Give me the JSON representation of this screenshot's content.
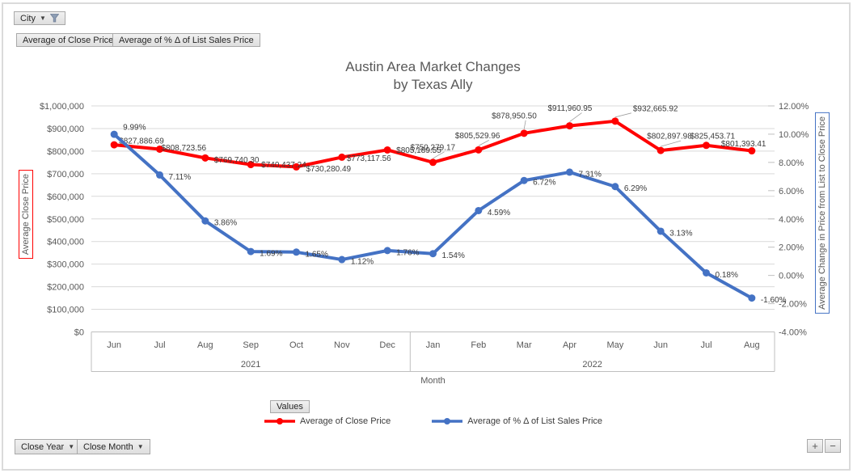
{
  "filter_button": {
    "label": "City"
  },
  "series_field_buttons": [
    {
      "label": "Average of Close Price"
    },
    {
      "label": "Average of % Δ of List Sales Price"
    }
  ],
  "title": {
    "line1": "Austin Area Market Changes",
    "line2": "by Texas Ally"
  },
  "left_axis": {
    "title": "Average Close Price",
    "color": "#FF0000",
    "ticks": [
      "$1,000,000",
      "$900,000",
      "$800,000",
      "$700,000",
      "$600,000",
      "$500,000",
      "$400,000",
      "$300,000",
      "$200,000",
      "$100,000",
      "$0"
    ]
  },
  "right_axis": {
    "title": "Average Change in Price from List to Close Price",
    "color": "#4472C4",
    "ticks": [
      "12.00%",
      "10.00%",
      "8.00%",
      "6.00%",
      "4.00%",
      "2.00%",
      "0.00%",
      "-2.00%",
      "-4.00%"
    ]
  },
  "x_axis": {
    "title": "Month",
    "groups": [
      {
        "year": "2021",
        "months": [
          "Jun",
          "Jul",
          "Aug",
          "Sep",
          "Oct",
          "Nov",
          "Dec"
        ]
      },
      {
        "year": "2022",
        "months": [
          "Jan",
          "Feb",
          "Mar",
          "Apr",
          "May",
          "Jun",
          "Jul",
          "Aug"
        ]
      }
    ]
  },
  "values_button": {
    "label": "Values"
  },
  "legend": [
    {
      "label": "Average of Close Price",
      "color": "#FF0000"
    },
    {
      "label": "Average of % Δ of List Sales Price",
      "color": "#4472C4"
    }
  ],
  "axis_field_buttons": [
    {
      "label": "Close Year"
    },
    {
      "label": "Close Month"
    }
  ],
  "zoom_buttons": {
    "plus": "+",
    "minus": "−"
  },
  "chart_data": {
    "type": "line",
    "title": "Austin Area Market Changes by Texas Ally",
    "x": [
      "Jun 2021",
      "Jul 2021",
      "Aug 2021",
      "Sep 2021",
      "Oct 2021",
      "Nov 2021",
      "Dec 2021",
      "Jan 2022",
      "Feb 2022",
      "Mar 2022",
      "Apr 2022",
      "May 2022",
      "Jun 2022",
      "Jul 2022",
      "Aug 2022"
    ],
    "xlabel": "Month",
    "left_ylabel": "Average Close Price",
    "right_ylabel": "Average Change in Price from List to Close Price",
    "left_ylim": [
      0,
      1000000
    ],
    "right_ylim": [
      -4,
      12
    ],
    "grid": true,
    "legend_position": "bottom",
    "series": [
      {
        "name": "Average of Close Price",
        "axis": "left",
        "color": "#FF0000",
        "values": [
          827886.69,
          808723.56,
          769740.3,
          740437.24,
          730280.49,
          773117.56,
          805189.55,
          750279.17,
          805529.96,
          878950.5,
          911960.95,
          932665.92,
          802897.98,
          825453.71,
          801393.41
        ],
        "labels": [
          "$827,886.69",
          "$808,723.56",
          "$769,740.30",
          "$740,437.24",
          "$730,280.49",
          "$773,117.56",
          "$805,189.55",
          "$750,279.17",
          "$805,529.96",
          "$878,950.50",
          "$911,960.95",
          "$932,665.92",
          "$802,897.98",
          "$825,453.71",
          "$801,393.41"
        ]
      },
      {
        "name": "Average of % Δ of List Sales Price",
        "axis": "right",
        "color": "#4472C4",
        "values": [
          9.99,
          7.11,
          3.86,
          1.69,
          1.65,
          1.12,
          1.76,
          1.54,
          4.59,
          6.72,
          7.31,
          6.29,
          3.13,
          0.18,
          -1.6
        ],
        "labels": [
          "9.99%",
          "7.11%",
          "3.86%",
          "1.69%",
          "1.65%",
          "1.12%",
          "1.76%",
          "1.54%",
          "4.59%",
          "6.72%",
          "7.31%",
          "6.29%",
          "3.13%",
          "0.18%",
          "-1.60%"
        ]
      }
    ]
  }
}
